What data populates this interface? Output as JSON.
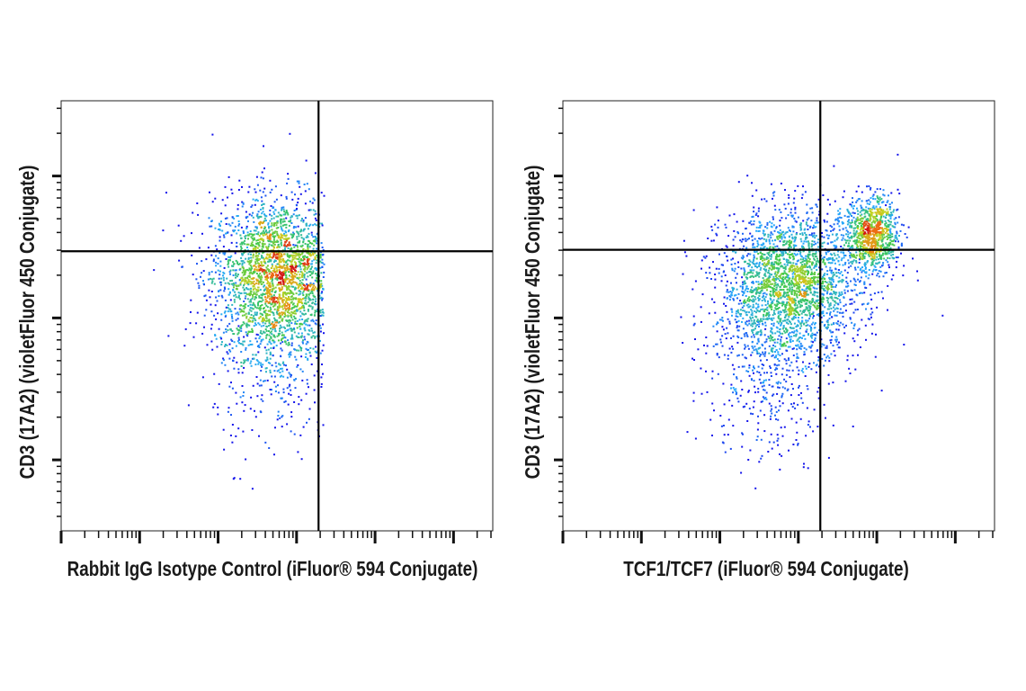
{
  "chart_data": [
    {
      "type": "scatter",
      "xlabel": "Rabbit IgG Isotype Control (iFluor® 594 Conjugate)",
      "ylabel": "CD3 (17A2) (violetFluor 450 Conjugate)",
      "xscale": "log",
      "yscale": "log",
      "xlim": [
        0,
        5.5
      ],
      "ylim": [
        0.5,
        3.53
      ],
      "x_major_decades": [
        0,
        1,
        2,
        3,
        4,
        5
      ],
      "y_major_decades": [
        1,
        2,
        3
      ],
      "grid": false,
      "gates": {
        "x": 3.28,
        "y": 2.47
      },
      "coloring": "density (blue-cyan-green-yellow-red)",
      "populations": [
        {
          "center": [
            2.75,
            2.3
          ],
          "spread": [
            0.42,
            0.28
          ],
          "count": 2600
        },
        {
          "center": [
            2.7,
            1.7
          ],
          "spread": [
            0.38,
            0.35
          ],
          "count": 350
        }
      ],
      "x_max_clip": 3.34
    },
    {
      "type": "scatter",
      "xlabel": "TCF1/TCF7 (iFluor® 594 Conjugate)",
      "ylabel": "CD3 (17A2) (violetFluor 450 Conjugate)",
      "xscale": "log",
      "yscale": "log",
      "xlim": [
        0,
        5.5
      ],
      "ylim": [
        0.5,
        3.53
      ],
      "x_major_decades": [
        0,
        1,
        2,
        3,
        4,
        5
      ],
      "y_major_decades": [
        1,
        2,
        3
      ],
      "grid": false,
      "gates": {
        "x": 3.28,
        "y": 2.48
      },
      "coloring": "density (blue-cyan-green-yellow-red)",
      "populations": [
        {
          "center": [
            2.9,
            2.25
          ],
          "spread": [
            0.45,
            0.25
          ],
          "count": 2400
        },
        {
          "center": [
            2.6,
            1.65
          ],
          "spread": [
            0.4,
            0.35
          ],
          "count": 450
        },
        {
          "center": [
            3.93,
            2.6
          ],
          "spread": [
            0.17,
            0.13
          ],
          "count": 900
        }
      ]
    }
  ]
}
